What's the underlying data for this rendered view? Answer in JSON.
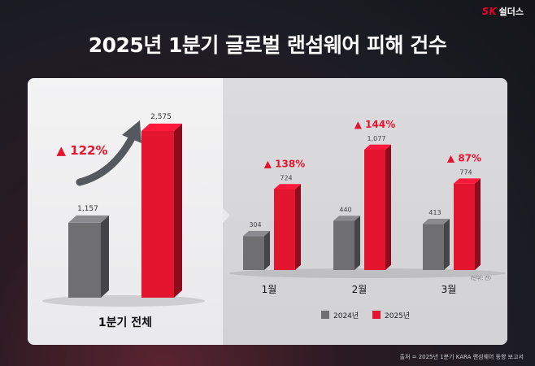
{
  "brand": {
    "sk": "SK",
    "name": "쉴더스"
  },
  "title": "2025년 1분기 글로벌 랜섬웨어 피해 건수",
  "source": "출처 = 2025년 1분기 KARA 랜섬웨어 동향 보고서",
  "colors": {
    "y2024": "#6f6f72",
    "y2025": "#e4152f",
    "growth": "#e4152f"
  },
  "chart_data": [
    {
      "type": "bar",
      "categories": [
        "1분기 전체"
      ],
      "series": [
        {
          "name": "2024년",
          "values": [
            1157
          ],
          "labels": [
            "1,157"
          ]
        },
        {
          "name": "2025년",
          "values": [
            2575
          ],
          "labels": [
            "2,575"
          ]
        }
      ],
      "growth": [
        "▲ 122%"
      ]
    },
    {
      "type": "bar",
      "categories": [
        "1월",
        "2월",
        "3월"
      ],
      "series": [
        {
          "name": "2024년",
          "values": [
            304,
            440,
            413
          ],
          "labels": [
            "304",
            "440",
            "413"
          ]
        },
        {
          "name": "2025년",
          "values": [
            724,
            1077,
            774
          ],
          "labels": [
            "724",
            "1,077",
            "774"
          ]
        }
      ],
      "growth": [
        "▲ 138%",
        "▲ 144%",
        "▲ 87%"
      ],
      "unit": "(단위: 건)",
      "legend": [
        "2024년",
        "2025년"
      ],
      "legend_position": "bottom"
    }
  ]
}
